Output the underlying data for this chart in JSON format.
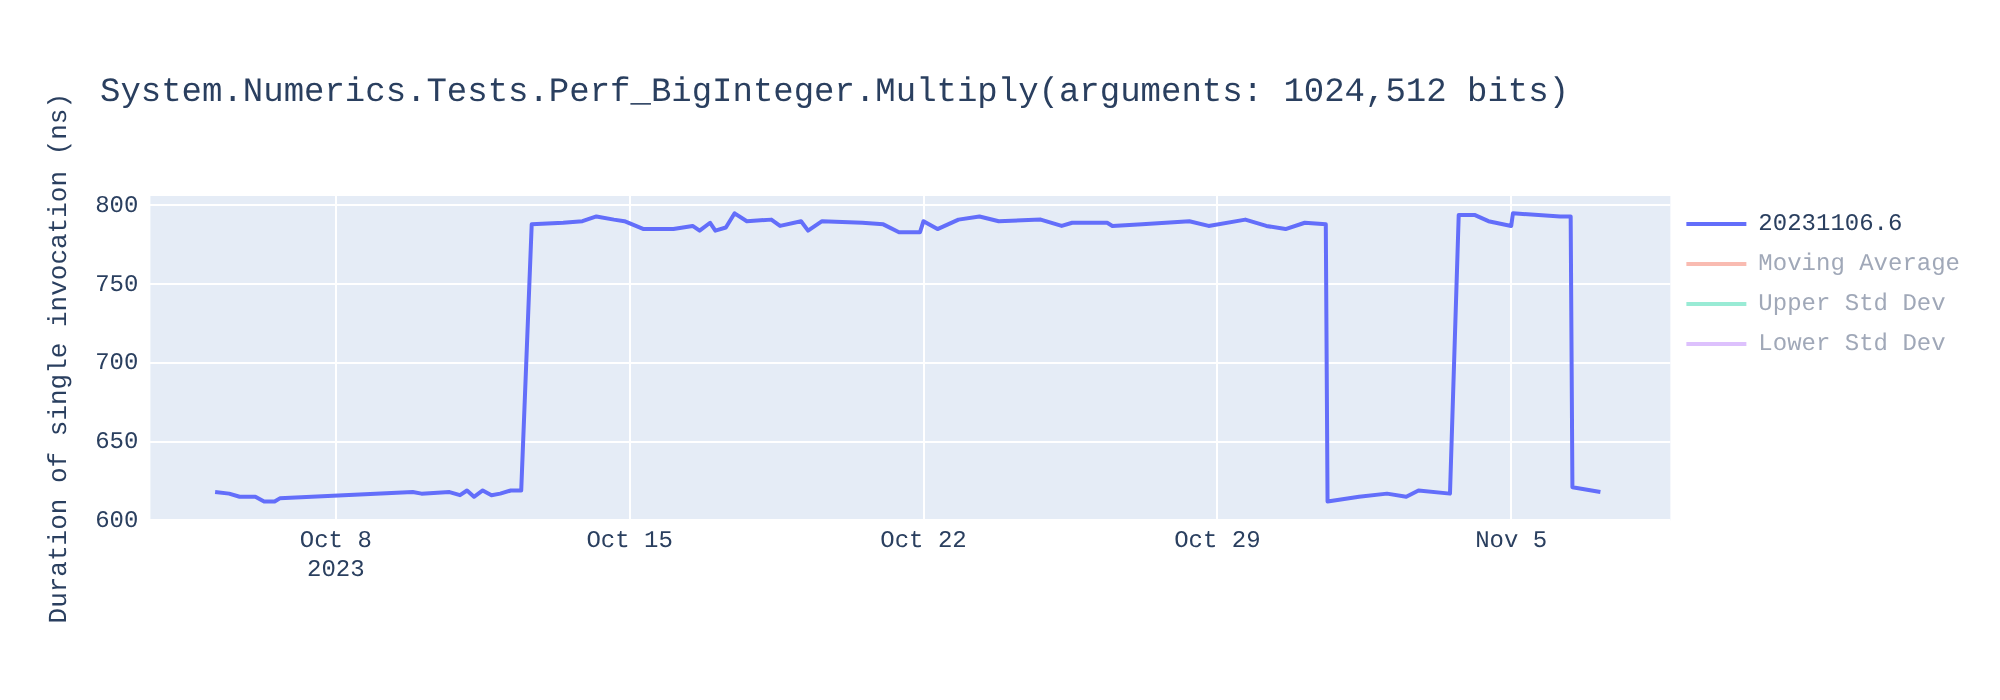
{
  "chart_data": {
    "type": "line",
    "title": "System.Numerics.Tests.Perf_BigInteger.Multiply(arguments: 1024,512 bits)",
    "ylabel": "Duration of single invocation (ns)",
    "xlim": [
      "2023-10-03T14:00",
      "2023-11-08T19:00"
    ],
    "xticks": [
      {
        "value": "2023-10-08",
        "label": "Oct 8\n2023"
      },
      {
        "value": "2023-10-15",
        "label": "Oct 15"
      },
      {
        "value": "2023-10-22",
        "label": "Oct 22"
      },
      {
        "value": "2023-10-29",
        "label": "Oct 29"
      },
      {
        "value": "2023-11-05",
        "label": "Nov 5"
      }
    ],
    "ylim": [
      600,
      806
    ],
    "yticks": [
      600,
      650,
      700,
      750,
      800
    ],
    "grid": true,
    "legend": "top right",
    "x": [
      "2023-10-05T03:00",
      "2023-10-05T11:00",
      "2023-10-05T17:00",
      "2023-10-06T02:00",
      "2023-10-06T07:00",
      "2023-10-06T13:00",
      "2023-10-06T16:00",
      "2023-10-09T20:00",
      "2023-10-10T01:00",
      "2023-10-10T17:00",
      "2023-10-10T23:00",
      "2023-10-11T03:00",
      "2023-10-11T07:00",
      "2023-10-11T12:00",
      "2023-10-11T17:00",
      "2023-10-11T22:00",
      "2023-10-12T04:00",
      "2023-10-12T10:00",
      "2023-10-12T16:00",
      "2023-10-13T10:00",
      "2023-10-13T21:00",
      "2023-10-14T05:00",
      "2023-10-14T15:00",
      "2023-10-14T21:00",
      "2023-10-15T08:00",
      "2023-10-16T01:00",
      "2023-10-16T12:00",
      "2023-10-16T16:00",
      "2023-10-16T22:00",
      "2023-10-17T01:00",
      "2023-10-17T07:00",
      "2023-10-17T12:00",
      "2023-10-17T19:00",
      "2023-10-18T09:00",
      "2023-10-18T14:00",
      "2023-10-19T02:00",
      "2023-10-19T06:00",
      "2023-10-19T14:00",
      "2023-10-20T13:00",
      "2023-10-21T01:00",
      "2023-10-21T10:00",
      "2023-10-21T22:00",
      "2023-10-22T00:00",
      "2023-10-22T08:00",
      "2023-10-22T20:00",
      "2023-10-23T08:00",
      "2023-10-23T19:00",
      "2023-10-24T19:00",
      "2023-10-25T07:00",
      "2023-10-25T13:00",
      "2023-10-26T09:00",
      "2023-10-26T12:00",
      "2023-10-27T05:00",
      "2023-10-28T08:00",
      "2023-10-28T19:00",
      "2023-10-29T16:00",
      "2023-10-30T04:00",
      "2023-10-30T15:00",
      "2023-10-31T02:00",
      "2023-10-31T14:00",
      "2023-10-31T15:00",
      "2023-11-01T09:00",
      "2023-11-02T01:00",
      "2023-11-02T12:00",
      "2023-11-02T19:00",
      "2023-11-03T13:00",
      "2023-11-03T18:00",
      "2023-11-04T03:00",
      "2023-11-04T11:00",
      "2023-11-05T00:00",
      "2023-11-05T01:00",
      "2023-11-06T04:00",
      "2023-11-06T10:00",
      "2023-11-06T11:00",
      "2023-11-07T03:00"
    ],
    "series": [
      {
        "name": "20231106.6",
        "color": "#636efa",
        "values": [
          618,
          617,
          615,
          615,
          612,
          612,
          614,
          618,
          617,
          618,
          616,
          619,
          615,
          619,
          616,
          617,
          619,
          619,
          788,
          789,
          790,
          793,
          791,
          790,
          785,
          785,
          787,
          784,
          789,
          784,
          786,
          795,
          790,
          791,
          787,
          790,
          784,
          790,
          789,
          788,
          783,
          783,
          790,
          785,
          791,
          793,
          790,
          791,
          787,
          789,
          789,
          787,
          788,
          790,
          787,
          791,
          787,
          785,
          789,
          788,
          612,
          615,
          617,
          615,
          619,
          617,
          794,
          794,
          790,
          787,
          795,
          793,
          793,
          621,
          618
        ]
      },
      {
        "name": "Moving Average",
        "color": "#ef553b",
        "values": [
          null,
          null,
          null,
          null,
          null,
          null,
          null,
          null,
          null,
          null,
          null,
          null,
          null,
          null,
          null,
          null,
          null,
          null,
          null,
          null,
          null,
          null,
          null,
          null,
          null,
          null,
          null,
          null,
          null,
          null,
          null,
          null,
          null,
          null,
          null,
          null,
          null,
          null,
          null,
          null,
          null,
          null,
          null,
          null,
          null,
          null,
          null,
          null,
          null,
          null,
          null,
          null,
          null,
          null,
          null,
          null,
          null,
          null,
          null,
          null,
          null,
          null,
          null,
          null,
          null,
          null,
          null,
          null,
          null,
          null,
          null,
          null,
          null,
          null,
          null
        ]
      },
      {
        "name": "Upper Std Dev",
        "color": "#00cc96",
        "values": [
          null,
          null,
          null,
          null,
          null,
          null,
          null,
          null,
          null,
          null,
          null,
          null,
          null,
          null,
          null,
          null,
          null,
          null,
          null,
          null,
          null,
          null,
          null,
          null,
          null,
          null,
          null,
          null,
          null,
          null,
          null,
          null,
          null,
          null,
          null,
          null,
          null,
          null,
          null,
          null,
          null,
          null,
          null,
          null,
          null,
          null,
          null,
          null,
          null,
          null,
          null,
          null,
          null,
          null,
          null,
          null,
          null,
          null,
          null,
          null,
          null,
          null,
          null,
          null,
          null,
          null,
          null,
          null,
          null,
          null,
          null,
          null,
          null,
          null,
          null
        ]
      },
      {
        "name": "Lower Std Dev",
        "color": "#ab63fa",
        "values": [
          null,
          null,
          null,
          null,
          null,
          null,
          null,
          null,
          null,
          null,
          null,
          null,
          null,
          null,
          null,
          null,
          null,
          null,
          null,
          null,
          null,
          null,
          null,
          null,
          null,
          null,
          null,
          null,
          null,
          null,
          null,
          null,
          null,
          null,
          null,
          null,
          null,
          null,
          null,
          null,
          null,
          null,
          null,
          null,
          null,
          null,
          null,
          null,
          null,
          null,
          null,
          null,
          null,
          null,
          null,
          null,
          null,
          null,
          null,
          null,
          null,
          null,
          null,
          null,
          null,
          null,
          null,
          null,
          null,
          null,
          null,
          null,
          null,
          null,
          null
        ]
      }
    ]
  }
}
